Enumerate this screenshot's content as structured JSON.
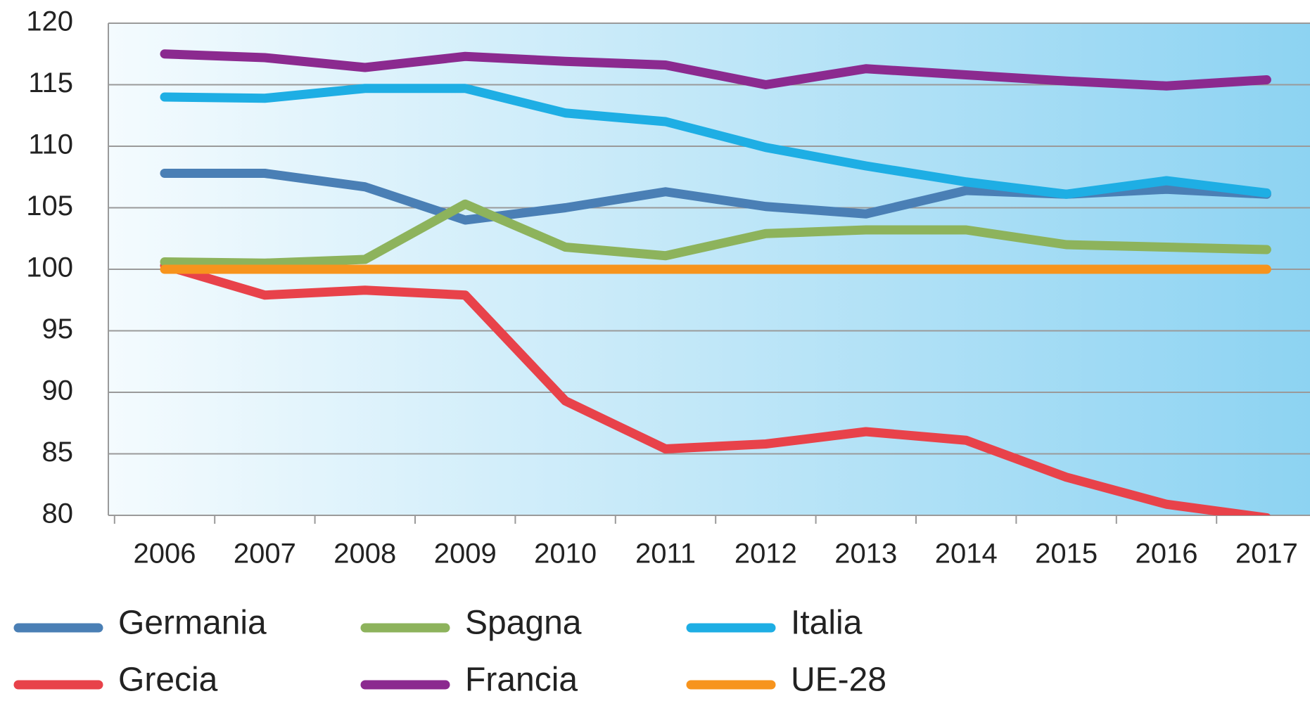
{
  "chart_data": {
    "type": "line",
    "categories": [
      "2006",
      "2007",
      "2008",
      "2009",
      "2010",
      "2011",
      "2012",
      "2013",
      "2014",
      "2015",
      "2016",
      "2017"
    ],
    "series": [
      {
        "name": "Germania",
        "color": "#4a7fb5",
        "values": [
          107.8,
          107.8,
          106.7,
          104,
          105,
          106.3,
          105.1,
          104.5,
          106.4,
          106.1,
          106.5,
          106.1
        ]
      },
      {
        "name": "Grecia",
        "color": "#e8424a",
        "values": [
          100.3,
          97.9,
          98.3,
          97.9,
          89.3,
          85.4,
          85.8,
          86.8,
          86.1,
          83.1,
          80.9,
          79.8
        ]
      },
      {
        "name": "Spagna",
        "color": "#8db35c",
        "values": [
          100.6,
          100.5,
          100.8,
          105.3,
          101.8,
          101.1,
          102.9,
          103.2,
          103.2,
          102,
          101.8,
          101.6
        ]
      },
      {
        "name": "Francia",
        "color": "#8b2a8f",
        "values": [
          117.5,
          117.2,
          116.4,
          117.3,
          116.9,
          116.6,
          115,
          116.3,
          115.8,
          115.3,
          114.9,
          115.4
        ]
      },
      {
        "name": "Italia",
        "color": "#1eaee4",
        "values": [
          114,
          113.9,
          114.7,
          114.7,
          112.7,
          112,
          109.9,
          108.4,
          107.1,
          106.1,
          107.2,
          106.2
        ]
      },
      {
        "name": "UE-28",
        "color": "#f7941d",
        "values": [
          100,
          100,
          100,
          100,
          100,
          100,
          100,
          100,
          100,
          100,
          100,
          100
        ]
      }
    ],
    "ylim": [
      80,
      120
    ],
    "yticks": [
      80,
      85,
      90,
      95,
      100,
      105,
      110,
      115,
      120
    ],
    "grid": true
  }
}
